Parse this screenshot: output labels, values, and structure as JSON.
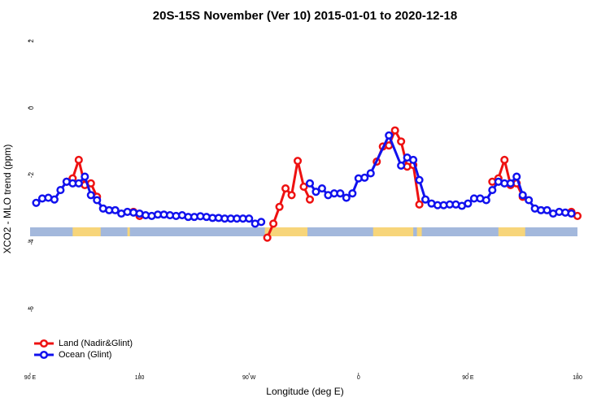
{
  "chart_data": {
    "type": "line",
    "title": "20S-15S November (Ver 10)   2015-01-01 to 2020-12-18",
    "xlabel": "Longitude (deg E)",
    "ylabel": "XCO2 - MLO trend (ppm)",
    "xlim": [
      90,
      540
    ],
    "ylim": [
      -7.97,
      2.3
    ],
    "xticks": [
      {
        "value": 90,
        "label": "90 E"
      },
      {
        "value": 180,
        "label": "180"
      },
      {
        "value": 270,
        "label": "90 W"
      },
      {
        "value": 360,
        "label": "0"
      },
      {
        "value": 450,
        "label": "90 E"
      },
      {
        "value": 540,
        "label": "180"
      }
    ],
    "yticks": [
      2,
      0,
      -2,
      -4,
      -6
    ],
    "legend": "bottom-left",
    "land_regions": [
      [
        125,
        148
      ],
      [
        170,
        172
      ],
      [
        283,
        318
      ],
      [
        372,
        405
      ],
      [
        408,
        412
      ],
      [
        475,
        497
      ]
    ],
    "land_color": "#f7d57a",
    "ocean_color": "#a3b8dc",
    "series": [
      {
        "name": "Land (Nadir&Glint)",
        "color": "#ee1111",
        "x": [
          120,
          125,
          130,
          135,
          140,
          145,
          150,
          175,
          180,
          185,
          285,
          290,
          295,
          300,
          305,
          310,
          315,
          320,
          325,
          375,
          380,
          385,
          390,
          395,
          400,
          405,
          410,
          415,
          470,
          475,
          480,
          485,
          490,
          495,
          500,
          535,
          540
        ],
        "values": [
          -2.2,
          -2.1,
          -1.55,
          -2.3,
          -2.25,
          -2.65,
          null,
          -3.1,
          -3.22,
          null,
          -3.87,
          -3.45,
          -2.95,
          -2.4,
          -2.6,
          -1.58,
          -2.35,
          -2.73,
          null,
          -1.6,
          -1.15,
          -1.12,
          -0.67,
          -1.0,
          -1.75,
          -1.7,
          -2.88,
          null,
          -2.2,
          -2.1,
          -1.55,
          -2.3,
          -2.25,
          -2.65,
          null,
          -3.1,
          -3.22
        ]
      },
      {
        "name": "Ocean (Glint)",
        "color": "#1111ee",
        "x": [
          95,
          100,
          105,
          110,
          115,
          120,
          125,
          130,
          135,
          140,
          145,
          150,
          155,
          160,
          165,
          170,
          175,
          180,
          185,
          190,
          195,
          200,
          205,
          210,
          215,
          220,
          225,
          230,
          235,
          240,
          245,
          250,
          255,
          260,
          265,
          270,
          275,
          280,
          285,
          320,
          325,
          330,
          335,
          340,
          345,
          350,
          355,
          360,
          365,
          370,
          385,
          395,
          400,
          405,
          410,
          415,
          420,
          425,
          430,
          435,
          440,
          445,
          450,
          455,
          460,
          465,
          470,
          475,
          480,
          485,
          490,
          495,
          500,
          505,
          510,
          515,
          520,
          525,
          530,
          535
        ],
        "values": [
          -2.83,
          -2.7,
          -2.68,
          -2.73,
          -2.45,
          -2.2,
          -2.25,
          -2.25,
          -2.05,
          -2.6,
          -2.75,
          -3.0,
          -3.05,
          -3.05,
          -3.15,
          -3.1,
          -3.12,
          -3.15,
          -3.2,
          -3.22,
          -3.18,
          -3.18,
          -3.2,
          -3.22,
          -3.2,
          -3.25,
          -3.25,
          -3.23,
          -3.25,
          -3.28,
          -3.28,
          -3.3,
          -3.3,
          -3.3,
          -3.3,
          -3.3,
          -3.45,
          -3.4,
          null,
          -2.25,
          -2.5,
          -2.4,
          -2.6,
          -2.55,
          -2.55,
          -2.68,
          -2.55,
          -2.1,
          -2.08,
          -1.95,
          -0.82,
          -1.72,
          -1.48,
          -1.55,
          -2.15,
          -2.73,
          -2.85,
          -2.9,
          -2.9,
          -2.88,
          -2.88,
          -2.92,
          -2.85,
          -2.7,
          -2.7,
          -2.75,
          -2.45,
          -2.2,
          -2.25,
          -2.25,
          -2.05,
          -2.6,
          -2.75,
          -3.0,
          -3.05,
          -3.05,
          -3.15,
          -3.1,
          -3.12,
          -3.15
        ]
      }
    ]
  }
}
